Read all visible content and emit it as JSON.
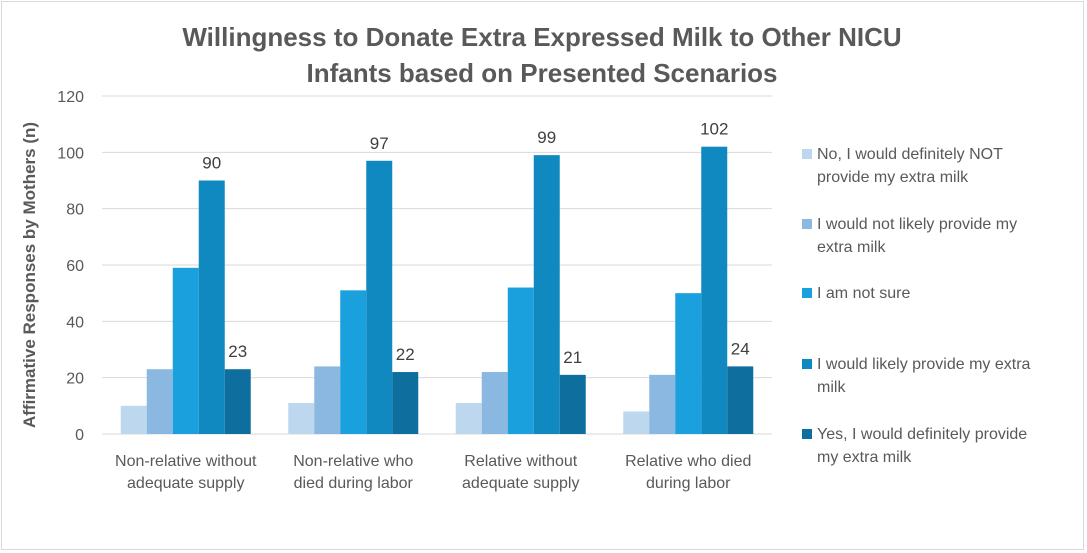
{
  "chart_data": {
    "type": "bar",
    "title_lines": [
      "Willingness to Donate Extra Expressed Milk to Other NICU",
      "Infants based on Presented Scenarios"
    ],
    "ylabel": "Affirmative Responses by Mothers (n)",
    "xlabel": "",
    "ylim": [
      0,
      120
    ],
    "yticks": [
      "0",
      "20",
      "40",
      "60",
      "80",
      "100",
      "120"
    ],
    "grid": true,
    "legend_position": "right",
    "categories": [
      [
        "Non-relative without",
        "adequate supply"
      ],
      [
        "Non-relative who",
        "died during labor"
      ],
      [
        "Relative without",
        "adequate supply"
      ],
      [
        "Relative who died",
        "during labor"
      ]
    ],
    "series": [
      {
        "name_lines": [
          "No, I would definitely NOT",
          "provide my extra milk"
        ],
        "color": "#bdd7ee",
        "values": [
          10,
          11,
          11,
          8
        ],
        "labels": [
          "",
          "",
          "",
          ""
        ]
      },
      {
        "name_lines": [
          "I would not likely provide my",
          "extra milk"
        ],
        "color": "#8ab8e0",
        "values": [
          23,
          24,
          22,
          21
        ],
        "labels": [
          "",
          "",
          "",
          ""
        ]
      },
      {
        "name_lines": [
          "I am not sure"
        ],
        "color": "#1aa0dc",
        "values": [
          59,
          51,
          52,
          50
        ],
        "labels": [
          "",
          "",
          "",
          ""
        ]
      },
      {
        "name_lines": [
          "I would likely provide my extra",
          "milk"
        ],
        "color": "#1089c0",
        "values": [
          90,
          97,
          99,
          102
        ],
        "labels": [
          "90",
          "97",
          "99",
          "102"
        ]
      },
      {
        "name_lines": [
          "Yes, I would definitely provide",
          "my extra milk"
        ],
        "color": "#0e6f9e",
        "values": [
          23,
          22,
          21,
          24
        ],
        "labels": [
          "23",
          "22",
          "21",
          "24"
        ]
      }
    ]
  }
}
